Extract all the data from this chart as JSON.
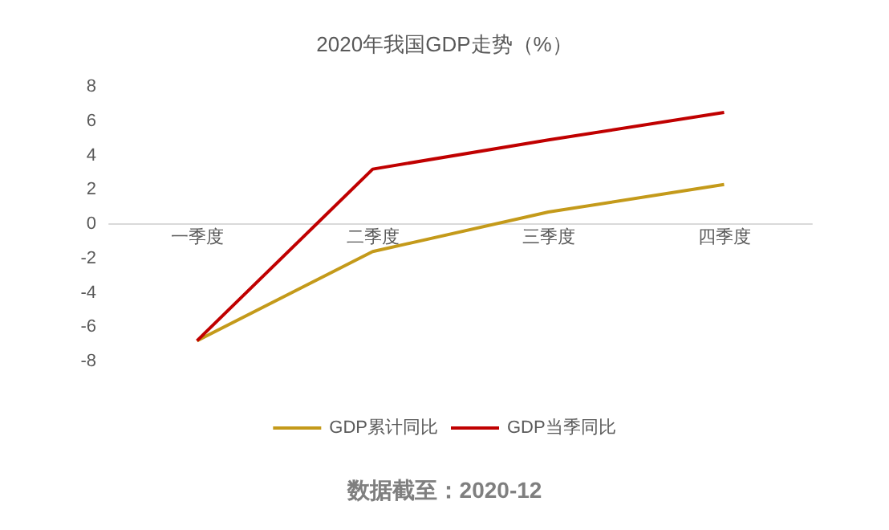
{
  "chart_data": {
    "type": "line",
    "title": "2020年我国GDP走势（%）",
    "categories": [
      "一季度",
      "二季度",
      "三季度",
      "四季度"
    ],
    "series": [
      {
        "name": "GDP累计同比",
        "color": "#c49a1a",
        "values": [
          -6.8,
          -1.6,
          0.7,
          2.3
        ]
      },
      {
        "name": "GDP当季同比",
        "color": "#c00000",
        "values": [
          -6.8,
          3.2,
          4.9,
          6.5
        ]
      }
    ],
    "ylim": [
      -8,
      8
    ],
    "yticks": [
      -8,
      -6,
      -4,
      -2,
      0,
      2,
      4,
      6,
      8
    ],
    "grid": false,
    "legend": "bottom",
    "marker": "none",
    "line_style": "solid",
    "annotations": [
      "数据截至：2020-12"
    ]
  }
}
